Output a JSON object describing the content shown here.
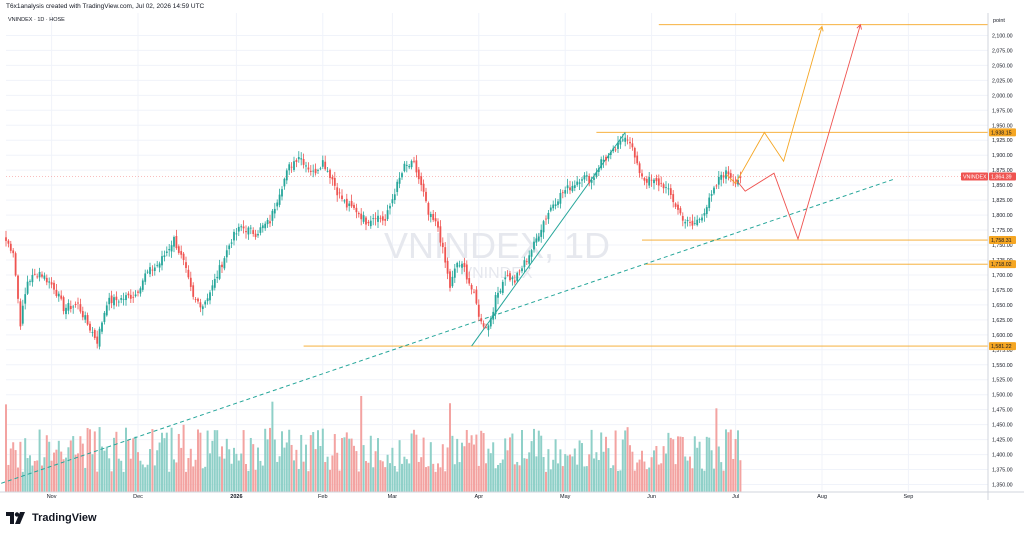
{
  "header": {
    "caption": "T6x1analysis created with TradingView.com, Jul 02, 2026 14:59 UTC"
  },
  "symbol_line": "VNINDEX · 1D · HOSE",
  "watermark": {
    "main": "VNINDEX, 1D",
    "sub": "VNINDEX"
  },
  "footer": {
    "brand": "TradingView"
  },
  "colors": {
    "up": "#26a69a",
    "down": "#ef5350",
    "vol_up": "#8fd0c8",
    "vol_down": "#f3a3a1",
    "level": "#f5a623",
    "trend": "#26a69a",
    "proj_orange": "#f5a623",
    "proj_red": "#ef5350"
  },
  "chart_data": {
    "type": "candlestick",
    "title": "VNINDEX · 1D · HOSE",
    "y_unit": "point",
    "ylim": [
      1337.5,
      2137.5
    ],
    "y_ticks": [
      1350,
      1375,
      1400,
      1425,
      1450,
      1475,
      1500,
      1525,
      1550,
      1575,
      1600,
      1625,
      1650,
      1675,
      1700,
      1725,
      1750,
      1775,
      1800,
      1825,
      1850,
      1875,
      1900,
      1925,
      1950,
      1975,
      2000,
      2025,
      2050,
      2075,
      2100
    ],
    "x_ticks": [
      "Nov",
      "Dec",
      "2026",
      "Feb",
      "Mar",
      "Apr",
      "May",
      "Jun",
      "Jul",
      "Aug",
      "Sep"
    ],
    "price_labels": [
      {
        "label": "1,938.15",
        "value": 1938.15,
        "kind": "level"
      },
      {
        "label": "VNINDEX",
        "value": 1864.39,
        "kind": "last-name"
      },
      {
        "label": "1,864.39",
        "value": 1864.39,
        "kind": "last"
      },
      {
        "label": "1,758.31",
        "value": 1758.31,
        "kind": "level"
      },
      {
        "label": "1,718.02",
        "value": 1718.02,
        "kind": "level"
      },
      {
        "label": "1,581.22",
        "value": 1581.22,
        "kind": "level"
      }
    ],
    "levels": [
      2118,
      1938.15,
      1758.31,
      1718.02,
      1581.22
    ],
    "close_path": [
      [
        0,
        1757
      ],
      [
        3,
        1740
      ],
      [
        6,
        1620
      ],
      [
        9,
        1690
      ],
      [
        14,
        1705
      ],
      [
        20,
        1680
      ],
      [
        24,
        1645
      ],
      [
        30,
        1650
      ],
      [
        34,
        1618
      ],
      [
        38,
        1590
      ],
      [
        42,
        1655
      ],
      [
        48,
        1660
      ],
      [
        54,
        1668
      ],
      [
        58,
        1700
      ],
      [
        64,
        1720
      ],
      [
        70,
        1760
      ],
      [
        74,
        1720
      ],
      [
        78,
        1660
      ],
      [
        82,
        1650
      ],
      [
        86,
        1680
      ],
      [
        90,
        1720
      ],
      [
        94,
        1760
      ],
      [
        98,
        1780
      ],
      [
        104,
        1770
      ],
      [
        110,
        1790
      ],
      [
        114,
        1840
      ],
      [
        118,
        1880
      ],
      [
        122,
        1900
      ],
      [
        128,
        1870
      ],
      [
        132,
        1890
      ],
      [
        136,
        1860
      ],
      [
        138,
        1840
      ],
      [
        142,
        1815
      ],
      [
        146,
        1808
      ],
      [
        150,
        1790
      ],
      [
        154,
        1800
      ],
      [
        158,
        1790
      ],
      [
        162,
        1840
      ],
      [
        166,
        1880
      ],
      [
        170,
        1885
      ],
      [
        174,
        1835
      ],
      [
        176,
        1800
      ],
      [
        180,
        1780
      ],
      [
        183,
        1720
      ],
      [
        185,
        1680
      ],
      [
        188,
        1720
      ],
      [
        191,
        1710
      ],
      [
        195,
        1665
      ],
      [
        198,
        1620
      ],
      [
        201,
        1615
      ],
      [
        204,
        1660
      ],
      [
        208,
        1700
      ],
      [
        212,
        1690
      ],
      [
        216,
        1720
      ],
      [
        220,
        1750
      ],
      [
        224,
        1790
      ],
      [
        228,
        1820
      ],
      [
        232,
        1838
      ],
      [
        236,
        1850
      ],
      [
        240,
        1865
      ],
      [
        244,
        1858
      ],
      [
        248,
        1890
      ],
      [
        252,
        1900
      ],
      [
        256,
        1920
      ],
      [
        258,
        1935
      ],
      [
        260,
        1925
      ],
      [
        263,
        1880
      ],
      [
        266,
        1860
      ],
      [
        270,
        1855
      ],
      [
        274,
        1850
      ],
      [
        277,
        1832
      ],
      [
        280,
        1808
      ],
      [
        283,
        1790
      ],
      [
        286,
        1782
      ],
      [
        289,
        1795
      ],
      [
        292,
        1815
      ],
      [
        295,
        1840
      ],
      [
        298,
        1868
      ],
      [
        301,
        1870
      ],
      [
        304,
        1858
      ],
      [
        306,
        1864
      ]
    ],
    "trend_lines": [
      {
        "from": [
          -2,
          1352
        ],
        "to": [
          370,
          1860
        ],
        "style": "dashed"
      },
      {
        "from": [
          194,
          1581.22
        ],
        "to": [
          258,
          1938.15
        ],
        "style": "solid"
      }
    ],
    "projection_orange": [
      [
        300,
        1868
      ],
      [
        304,
        1853
      ],
      [
        316,
        1938
      ],
      [
        324,
        1890
      ],
      [
        340,
        2115
      ]
    ],
    "projection_red": [
      [
        304,
        1860
      ],
      [
        308,
        1840
      ],
      [
        320,
        1870
      ],
      [
        330,
        1760
      ],
      [
        356,
        2118
      ]
    ],
    "volume": {
      "min": 1337.5,
      "max": 1550
    }
  }
}
